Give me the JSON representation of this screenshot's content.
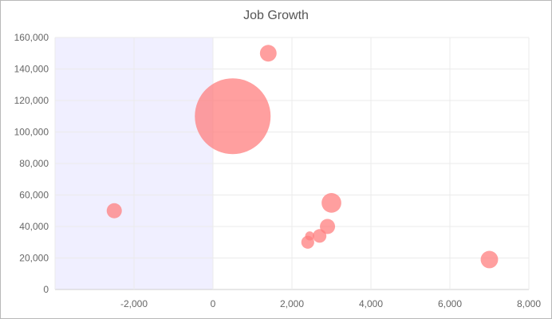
{
  "chart_data": {
    "type": "scatter",
    "title": "Job Growth",
    "xlabel": "",
    "ylabel": "",
    "xlim": [
      -4000,
      8000
    ],
    "ylim": [
      0,
      160000
    ],
    "xticks": [
      "-2,000",
      "0",
      "2,000",
      "4,000",
      "6,000",
      "8,000"
    ],
    "yticks": [
      "0",
      "20,000",
      "40,000",
      "60,000",
      "80,000",
      "100,000",
      "120,000",
      "140,000",
      "160,000"
    ],
    "xtick_values": [
      -2000,
      0,
      2000,
      4000,
      6000,
      8000
    ],
    "ytick_values": [
      0,
      20000,
      40000,
      60000,
      80000,
      100000,
      120000,
      140000,
      160000
    ],
    "grid": true,
    "shaded_region": {
      "x_from": -4000,
      "x_to": 0,
      "color": "#f0efff"
    },
    "marker_color": "#ff7f7f",
    "points": [
      {
        "x": -2500,
        "y": 50000,
        "size": 1
      },
      {
        "x": 500,
        "y": 110000,
        "size": 5
      },
      {
        "x": 1400,
        "y": 150000,
        "size": 1.1
      },
      {
        "x": 3000,
        "y": 55000,
        "size": 1.3
      },
      {
        "x": 2900,
        "y": 40000,
        "size": 1
      },
      {
        "x": 2700,
        "y": 34000,
        "size": 0.9
      },
      {
        "x": 2450,
        "y": 34000,
        "size": 0.6
      },
      {
        "x": 2400,
        "y": 30000,
        "size": 0.85
      },
      {
        "x": 7000,
        "y": 19000,
        "size": 1.15
      }
    ]
  }
}
